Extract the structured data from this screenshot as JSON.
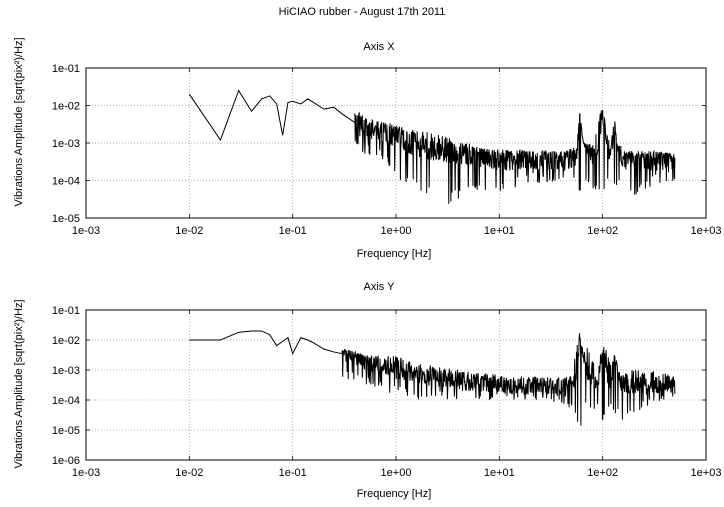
{
  "figure_title": "HiCIAO rubber - August 17th 2011",
  "chart_data": [
    {
      "type": "line",
      "title": "Axis X",
      "xlabel": "Frequency [Hz]",
      "ylabel": "Vibrations Amplitude [sqrt(pix²)/Hz]",
      "xscale": "log",
      "yscale": "log",
      "xlim": [
        0.001,
        1000
      ],
      "ylim": [
        1e-05,
        0.1
      ],
      "grid": true,
      "legend": "none",
      "line_color": "#000000",
      "xticks": [
        "1e-03",
        "1e-02",
        "1e-01",
        "1e+00",
        "1e+01",
        "1e+02",
        "1e+03"
      ],
      "yticks": [
        "1e-05",
        "1e-04",
        "1e-03",
        "1e-02",
        "1e-01"
      ],
      "series": [
        {
          "x": [
            0.01,
            0.02,
            0.03,
            0.04,
            0.05,
            0.06,
            0.07,
            0.08,
            0.09,
            0.1,
            0.12,
            0.14,
            0.16,
            0.2,
            0.25,
            0.3,
            0.4,
            0.5,
            0.7,
            1.0,
            1.5,
            2,
            3,
            5,
            7,
            10,
            20,
            40,
            55,
            60,
            70,
            80,
            90,
            100,
            110,
            120,
            130,
            150,
            200,
            300,
            500
          ],
          "y": [
            0.02,
            0.0012,
            0.025,
            0.007,
            0.015,
            0.018,
            0.011,
            0.0016,
            0.012,
            0.013,
            0.011,
            0.015,
            0.012,
            0.008,
            0.009,
            0.006,
            0.0035,
            0.0025,
            0.0022,
            0.0015,
            0.0009,
            0.0007,
            0.0006,
            0.0005,
            0.0004,
            0.00035,
            0.00035,
            0.00035,
            0.0004,
            0.006,
            0.0008,
            0.0004,
            0.0005,
            0.008,
            0.001,
            0.0004,
            0.0035,
            0.00035,
            0.0004,
            0.00035,
            0.0004
          ],
          "envelope_x": [
            0.4,
            0.5,
            0.7,
            1.0,
            1.5,
            2,
            3,
            4,
            5,
            7,
            10,
            20,
            40,
            55,
            60,
            65,
            70,
            80,
            90,
            100,
            110,
            120,
            130,
            140,
            150,
            160,
            200,
            300,
            500
          ],
          "envelope_high": [
            0.008,
            0.005,
            0.004,
            0.003,
            0.0022,
            0.002,
            0.0015,
            0.0012,
            0.001,
            0.0008,
            0.0007,
            0.0006,
            0.0006,
            0.0008,
            0.007,
            0.001,
            0.0009,
            0.0009,
            0.004,
            0.01,
            0.0018,
            0.0008,
            0.0045,
            0.0008,
            0.0009,
            0.0006,
            0.0006,
            0.0006,
            0.0005
          ],
          "envelope_low": [
            0.0008,
            0.0005,
            0.0004,
            0.00012,
            6e-05,
            4e-05,
            2e-05,
            3e-05,
            5e-05,
            4e-05,
            5e-05,
            8e-05,
            0.0001,
            8e-05,
            4e-05,
            7e-05,
            8e-05,
            6e-05,
            5e-05,
            4e-05,
            6e-05,
            8e-05,
            5e-05,
            6e-05,
            8e-05,
            0.0001,
            3e-05,
            7e-05,
            0.0001
          ]
        }
      ]
    },
    {
      "type": "line",
      "title": "Axis Y",
      "xlabel": "Frequency [Hz]",
      "ylabel": "Vibrations Amplitude [sqrt(pix²)/Hz]",
      "xscale": "log",
      "yscale": "log",
      "xlim": [
        0.001,
        1000
      ],
      "ylim": [
        1e-06,
        0.1
      ],
      "grid": true,
      "legend": "none",
      "line_color": "#000000",
      "xticks": [
        "1e-03",
        "1e-02",
        "1e-01",
        "1e+00",
        "1e+01",
        "1e+02",
        "1e+03"
      ],
      "yticks": [
        "1e-06",
        "1e-05",
        "1e-04",
        "1e-03",
        "1e-02",
        "1e-01"
      ],
      "series": [
        {
          "x": [
            0.01,
            0.02,
            0.03,
            0.04,
            0.05,
            0.06,
            0.07,
            0.08,
            0.09,
            0.1,
            0.12,
            0.14,
            0.16,
            0.2,
            0.25,
            0.3,
            0.4,
            0.5,
            0.7,
            1.0,
            1.5,
            2,
            3,
            5,
            7,
            10,
            20,
            40,
            55,
            60,
            70,
            80,
            90,
            100,
            110,
            120,
            130,
            150,
            200,
            300,
            500
          ],
          "y": [
            0.01,
            0.01,
            0.018,
            0.02,
            0.02,
            0.015,
            0.0065,
            0.009,
            0.012,
            0.0035,
            0.012,
            0.01,
            0.008,
            0.005,
            0.004,
            0.0035,
            0.003,
            0.002,
            0.0015,
            0.001,
            0.0008,
            0.0006,
            0.0005,
            0.0004,
            0.00035,
            0.0003,
            0.0003,
            0.0003,
            0.0004,
            0.015,
            0.001,
            0.0005,
            0.0004,
            0.006,
            0.0008,
            0.0004,
            0.0035,
            0.0004,
            0.0003,
            0.0003,
            0.0003
          ],
          "envelope_x": [
            0.3,
            0.4,
            0.5,
            0.7,
            1.0,
            1.5,
            2,
            3,
            5,
            7,
            10,
            20,
            40,
            50,
            60,
            65,
            70,
            80,
            90,
            100,
            110,
            120,
            130,
            140,
            150,
            170,
            200,
            250,
            300,
            400,
            500
          ],
          "envelope_high": [
            0.005,
            0.004,
            0.003,
            0.003,
            0.003,
            0.0018,
            0.0015,
            0.0012,
            0.0009,
            0.0008,
            0.0007,
            0.0006,
            0.0006,
            0.0007,
            0.02,
            0.003,
            0.008,
            0.002,
            0.001,
            0.009,
            0.006,
            0.0015,
            0.004,
            0.0012,
            0.0008,
            0.0008,
            0.0012,
            0.0008,
            0.001,
            0.0008,
            0.0006
          ],
          "envelope_low": [
            0.0006,
            0.0004,
            0.0003,
            0.0002,
            0.00015,
            0.0001,
            0.0001,
            0.0001,
            0.0001,
            0.0001,
            0.0001,
            0.0001,
            8e-05,
            5e-05,
            8e-06,
            4e-05,
            5e-05,
            3e-05,
            4e-05,
            2e-05,
            3e-05,
            4e-05,
            2e-05,
            3e-05,
            1.5e-05,
            3e-05,
            3e-05,
            5e-05,
            8e-05,
            0.0001,
            0.0001
          ]
        }
      ]
    }
  ]
}
